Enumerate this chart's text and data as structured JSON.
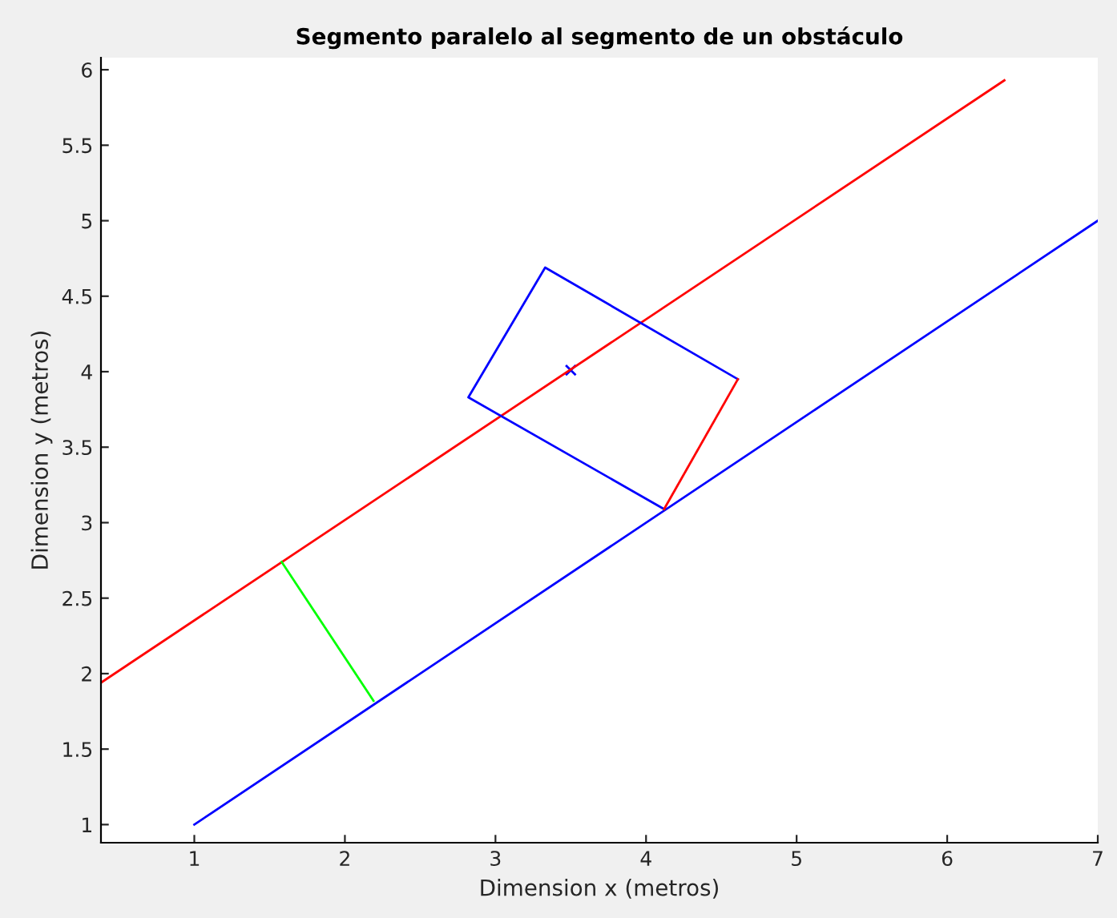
{
  "chart_data": {
    "type": "line",
    "title": "Segmento paralelo al segmento de un obstáculo",
    "xlabel": "Dimension x (metros)",
    "ylabel": "Dimension y (metros)",
    "xlim": [
      0.38,
      7
    ],
    "ylim": [
      0.88,
      6.08
    ],
    "xticks": [
      1,
      2,
      3,
      4,
      5,
      6,
      7
    ],
    "yticks": [
      1,
      1.5,
      2,
      2.5,
      3,
      3.5,
      4,
      4.5,
      5,
      5.5,
      6
    ],
    "grid": false,
    "legend": false,
    "series": [
      {
        "color": "#0000ff",
        "x": [
          1,
          7
        ],
        "values": [
          1,
          5
        ]
      },
      {
        "color": "#ff0000",
        "x": [
          0.38,
          6.38
        ],
        "values": [
          1.94,
          5.93
        ]
      },
      {
        "color": "#00ff00",
        "x": [
          1.58,
          2.19
        ],
        "values": [
          2.74,
          1.82
        ]
      },
      {
        "color": "#0000ff",
        "x": [
          4.61,
          3.33,
          2.82,
          4.12
        ],
        "values": [
          3.95,
          4.69,
          3.83,
          3.09
        ]
      },
      {
        "color": "#ff0000",
        "x": [
          4.61,
          4.12
        ],
        "values": [
          3.95,
          3.09
        ]
      },
      {
        "type": "scatter",
        "marker": "cross",
        "color": "#0000ff",
        "x": [
          3.5
        ],
        "values": [
          4.01
        ]
      }
    ]
  }
}
